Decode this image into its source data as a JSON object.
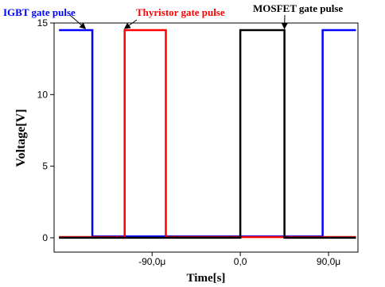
{
  "chart_data": {
    "type": "line",
    "title": "",
    "xlabel": "Time[s]",
    "ylabel": "Voltage[V]",
    "xlim": [
      -190,
      120
    ],
    "ylim": [
      -1,
      15
    ],
    "grid": false,
    "x_ticks": [
      {
        "value": -90,
        "label": "-90,0μ"
      },
      {
        "value": 0,
        "label": "0,0"
      },
      {
        "value": 90,
        "label": "90,0μ"
      }
    ],
    "y_ticks": [
      {
        "value": 0,
        "label": "0"
      },
      {
        "value": 5,
        "label": "5"
      },
      {
        "value": 10,
        "label": "10"
      },
      {
        "value": 15,
        "label": "15"
      }
    ],
    "series": [
      {
        "name": "IGBT gate pulse",
        "color": "#0000ff",
        "points": [
          [
            -185,
            14.5
          ],
          [
            -151,
            14.5
          ],
          [
            -151,
            0.1
          ],
          [
            84,
            0.1
          ],
          [
            84,
            14.5
          ],
          [
            118,
            14.5
          ]
        ]
      },
      {
        "name": "Thyristor gate pulse",
        "color": "#ff0000",
        "points": [
          [
            -185,
            0.05
          ],
          [
            -118,
            0.05
          ],
          [
            -118,
            14.5
          ],
          [
            -76,
            14.5
          ],
          [
            -76,
            0.05
          ],
          [
            118,
            0.05
          ]
        ]
      },
      {
        "name": "MOSFET gate pulse",
        "color": "#000000",
        "points": [
          [
            -185,
            0
          ],
          [
            0,
            0
          ],
          [
            0,
            14.5
          ],
          [
            45,
            14.5
          ],
          [
            45,
            0
          ],
          [
            118,
            0
          ]
        ]
      }
    ],
    "annotations": [
      {
        "text": "IGBT gate pulse",
        "color": "#0000ff",
        "points_to": [
          -158,
          14.5
        ]
      },
      {
        "text": "Thyristor gate pulse",
        "color": "#ff0000",
        "points_to": [
          -118,
          14.5
        ]
      },
      {
        "text": "MOSFET gate pulse",
        "color": "#000000",
        "points_to": [
          45,
          14.5
        ]
      }
    ]
  }
}
